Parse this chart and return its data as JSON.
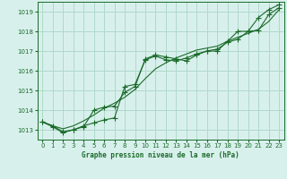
{
  "background_color": "#d8f0ec",
  "plot_bg_color": "#d8f0ec",
  "grid_color": "#b0d8cc",
  "line_color": "#1a6b2a",
  "title": "Graphe pression niveau de la mer (hPa)",
  "xlim": [
    -0.5,
    23.5
  ],
  "ylim": [
    1012.5,
    1019.5
  ],
  "yticks": [
    1013,
    1014,
    1015,
    1016,
    1017,
    1018,
    1019
  ],
  "xticks": [
    0,
    1,
    2,
    3,
    4,
    5,
    6,
    7,
    8,
    9,
    10,
    11,
    12,
    13,
    14,
    15,
    16,
    17,
    18,
    19,
    20,
    21,
    22,
    23
  ],
  "series1_x": [
    0,
    1,
    2,
    3,
    4,
    5,
    6,
    7,
    8,
    9,
    10,
    11,
    12,
    13,
    14,
    15,
    16,
    17,
    18,
    19,
    20,
    21,
    22,
    23
  ],
  "series1_y": [
    1013.4,
    1013.15,
    1012.85,
    1013.0,
    1013.2,
    1013.35,
    1013.5,
    1013.6,
    1015.2,
    1015.3,
    1016.55,
    1016.75,
    1016.55,
    1016.5,
    1016.65,
    1016.85,
    1017.0,
    1017.1,
    1017.45,
    1017.6,
    1018.0,
    1018.05,
    1018.85,
    1019.2
  ],
  "series2_x": [
    0,
    1,
    2,
    3,
    4,
    5,
    6,
    7,
    8,
    9,
    10,
    11,
    12,
    13,
    14,
    15,
    16,
    17,
    18,
    19,
    20,
    21,
    22,
    23
  ],
  "series2_y": [
    1013.4,
    1013.2,
    1012.9,
    1013.0,
    1013.15,
    1014.0,
    1014.15,
    1014.2,
    1014.9,
    1015.2,
    1016.6,
    1016.8,
    1016.7,
    1016.6,
    1016.5,
    1016.8,
    1017.0,
    1017.0,
    1017.5,
    1018.0,
    1018.0,
    1018.7,
    1019.1,
    1019.35
  ],
  "series3_x": [
    0,
    1,
    2,
    3,
    4,
    5,
    6,
    7,
    8,
    9,
    10,
    11,
    12,
    13,
    14,
    15,
    16,
    17,
    18,
    19,
    20,
    21,
    22,
    23
  ],
  "series3_y": [
    1013.4,
    1013.2,
    1013.05,
    1013.2,
    1013.45,
    1013.75,
    1014.1,
    1014.35,
    1014.65,
    1015.05,
    1015.6,
    1016.1,
    1016.4,
    1016.65,
    1016.85,
    1017.05,
    1017.15,
    1017.25,
    1017.5,
    1017.7,
    1017.9,
    1018.1,
    1018.5,
    1019.1
  ]
}
